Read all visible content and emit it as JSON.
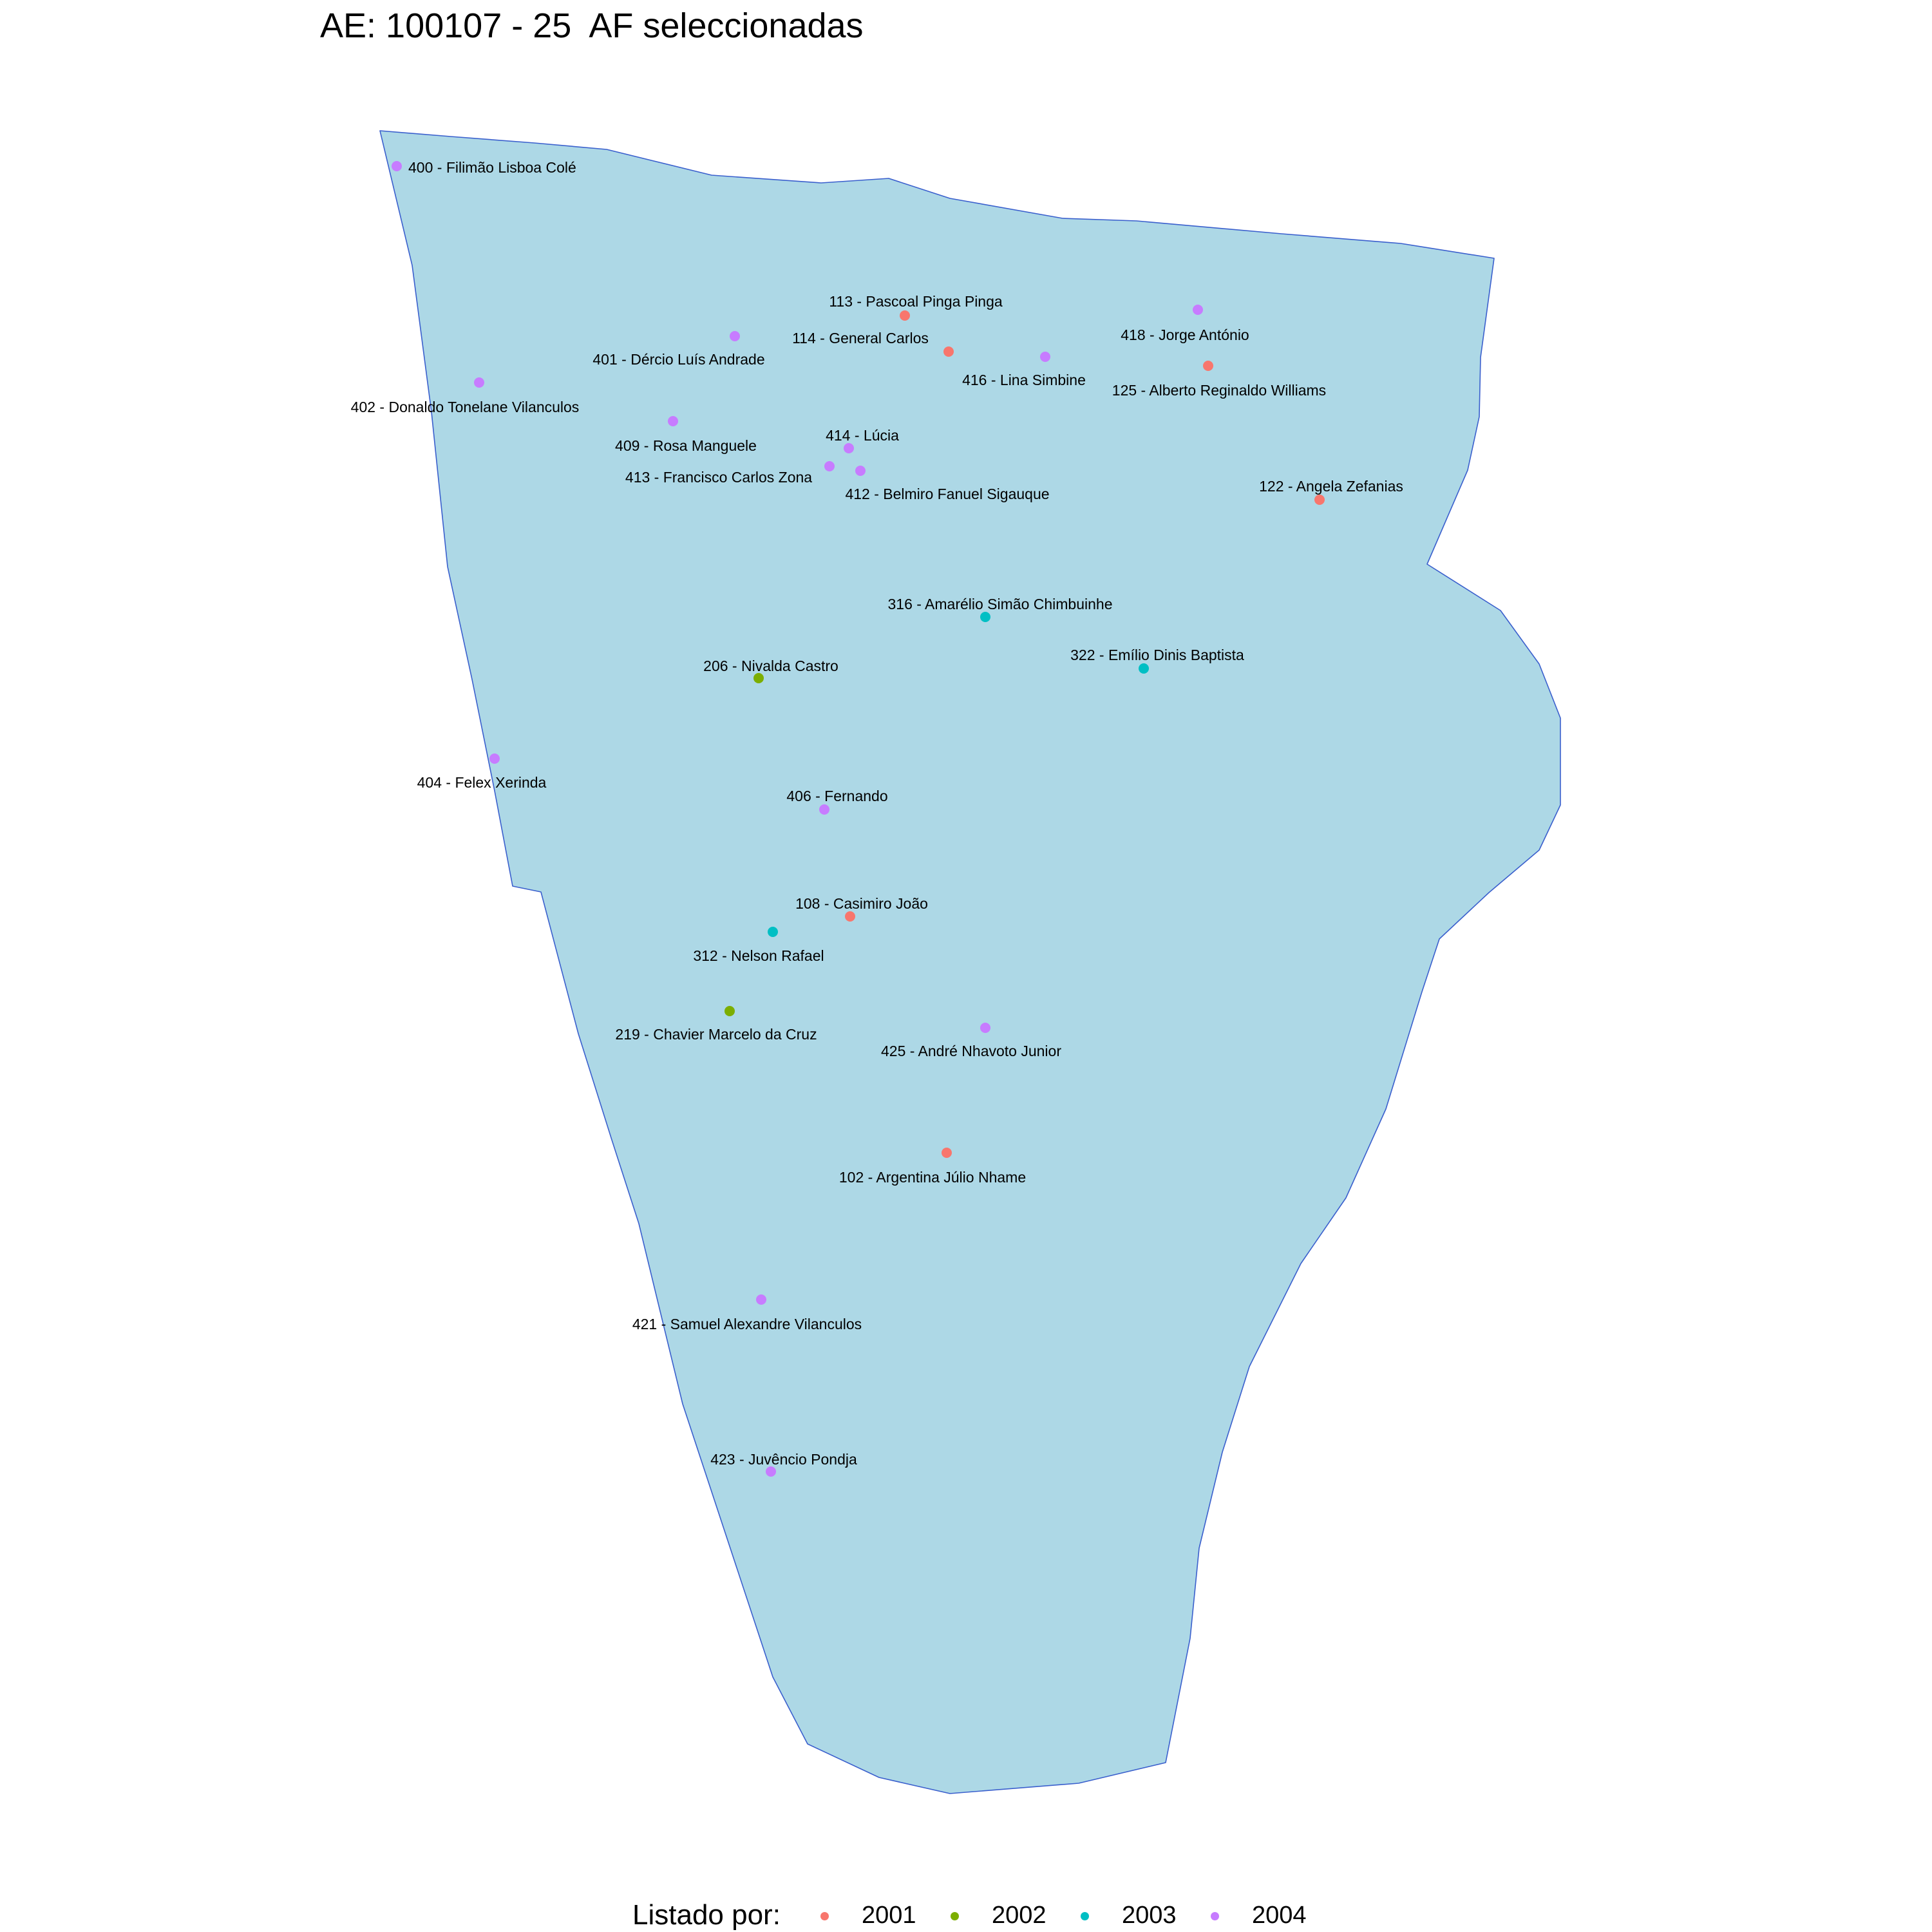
{
  "title": "AE: 100107 - 25  AF seleccionadas",
  "region": {
    "fill": "#add8e6",
    "stroke": "#3a5fcd"
  },
  "legend": {
    "title": "Listado por:",
    "entries": [
      {
        "label": "2001",
        "color": "#f8766d"
      },
      {
        "label": "2002",
        "color": "#7cae00"
      },
      {
        "label": "2003",
        "color": "#00bfc4"
      },
      {
        "label": "2004",
        "color": "#c77cff"
      }
    ]
  },
  "points": [
    {
      "id": "p400",
      "label": "400 - Filimão Lisboa Colé",
      "year": "2004"
    },
    {
      "id": "p113",
      "label": "113 - Pascoal Pinga Pinga",
      "year": "2001"
    },
    {
      "id": "p418",
      "label": "418 - Jorge António",
      "year": "2004"
    },
    {
      "id": "p114",
      "label": "114 - General Carlos",
      "year": "2001"
    },
    {
      "id": "p401",
      "label": "401 - Dércio Luís Andrade",
      "year": "2004"
    },
    {
      "id": "p416",
      "label": "416 - Lina Simbine",
      "year": "2004"
    },
    {
      "id": "p125",
      "label": "125 - Alberto Reginaldo Williams",
      "year": "2001"
    },
    {
      "id": "p402",
      "label": "402 - Donaldo Tonelane Vilanculos",
      "year": "2004"
    },
    {
      "id": "p409",
      "label": "409 - Rosa Manguele",
      "year": "2004"
    },
    {
      "id": "p414",
      "label": "414 - Lúcia",
      "year": "2004"
    },
    {
      "id": "p413",
      "label": "413 - Francisco Carlos Zona",
      "year": "2004"
    },
    {
      "id": "p412",
      "label": "412 - Belmiro Fanuel  Sigauque",
      "year": "2004"
    },
    {
      "id": "p122",
      "label": "122 - Angela Zefanias",
      "year": "2001"
    },
    {
      "id": "p316",
      "label": "316 - Amarélio  Simão Chimbuinhe",
      "year": "2003"
    },
    {
      "id": "p322",
      "label": "322 - Emílio Dinis  Baptista",
      "year": "2003"
    },
    {
      "id": "p206",
      "label": "206 - Nivalda Castro",
      "year": "2002"
    },
    {
      "id": "p404",
      "label": "404 - Felex Xerinda",
      "year": "2004"
    },
    {
      "id": "p406",
      "label": "406 - Fernando",
      "year": "2004"
    },
    {
      "id": "p108",
      "label": "108 - Casimiro João",
      "year": "2001"
    },
    {
      "id": "p312",
      "label": "312 - Nelson Rafael",
      "year": "2003"
    },
    {
      "id": "p219",
      "label": "219 - Chavier Marcelo da Cruz",
      "year": "2002"
    },
    {
      "id": "p425",
      "label": "425 - André Nhavoto Junior",
      "year": "2004"
    },
    {
      "id": "p102",
      "label": "102 - Argentina Júlio Nhame",
      "year": "2001"
    },
    {
      "id": "p421",
      "label": "421 - Samuel Alexandre Vilanculos",
      "year": "2004"
    },
    {
      "id": "p423",
      "label": "423 - Juvêncio Pondja",
      "year": "2004"
    }
  ]
}
